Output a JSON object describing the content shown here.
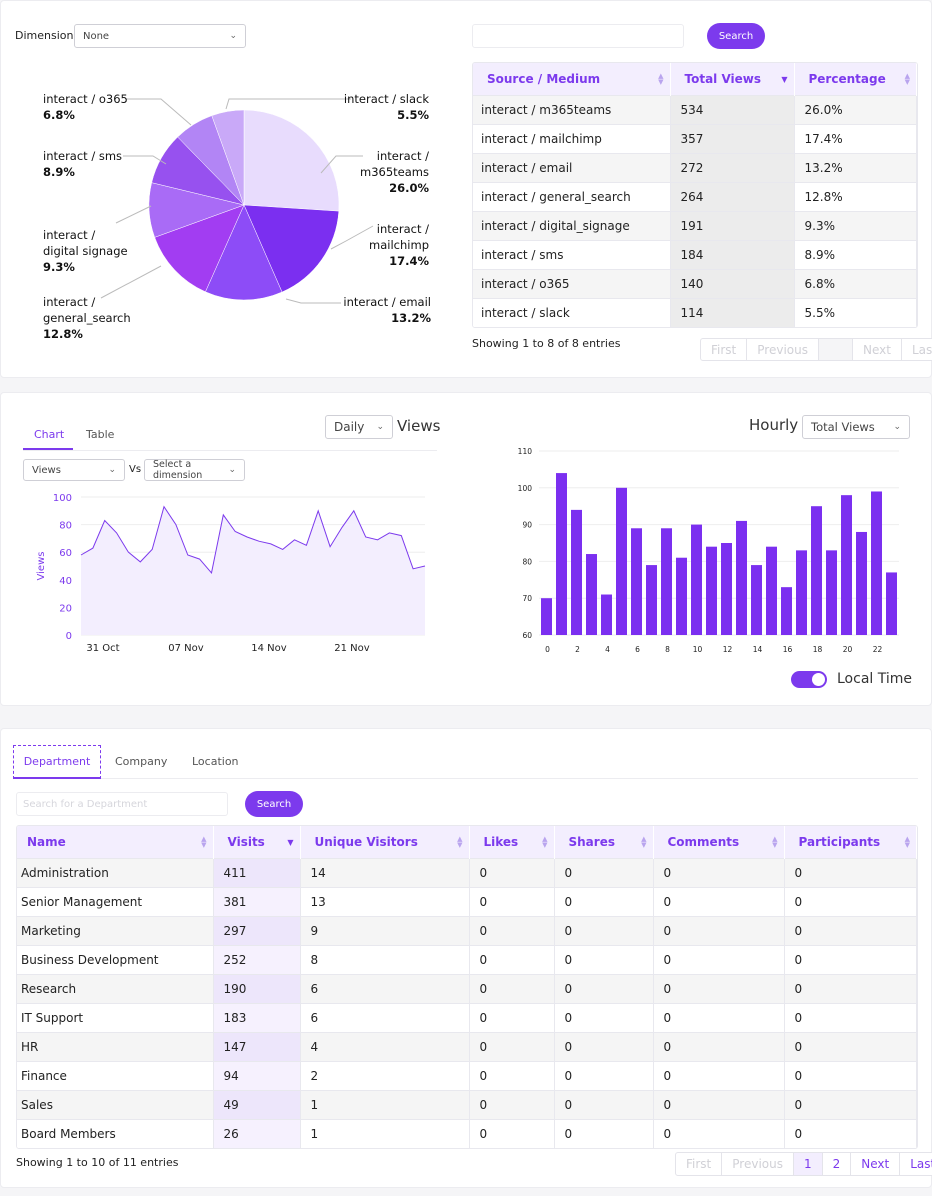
{
  "source_panel": {
    "dimension_label": "Dimension",
    "dimension_value": "None",
    "search_placeholder": "",
    "search_button": "Search",
    "pie_labels": [
      {
        "name": "interact / o365",
        "pct": "6.8%"
      },
      {
        "name": "interact / sms",
        "pct": "8.9%"
      },
      {
        "name": "interact /",
        "name2": "digital signage",
        "pct": "9.3%"
      },
      {
        "name": "interact /",
        "name2": "general_search",
        "pct": "12.8%"
      },
      {
        "name": "interact / slack",
        "pct": "5.5%"
      },
      {
        "name": "interact /",
        "name2": "m365teams",
        "pct": "26.0%"
      },
      {
        "name": "interact /",
        "name2": "mailchimp",
        "pct": "17.4%"
      },
      {
        "name": "interact / email",
        "pct": "13.2%"
      }
    ],
    "table": {
      "headers": [
        "Source / Medium",
        "Total Views",
        "Percentage"
      ],
      "rows": [
        [
          "interact / m365teams",
          "534",
          "26.0%"
        ],
        [
          "interact / mailchimp",
          "357",
          "17.4%"
        ],
        [
          "interact / email",
          "272",
          "13.2%"
        ],
        [
          "interact / general_search",
          "264",
          "12.8%"
        ],
        [
          "interact / digital_signage",
          "191",
          "9.3%"
        ],
        [
          "interact / sms",
          "184",
          "8.9%"
        ],
        [
          "interact / o365",
          "140",
          "6.8%"
        ],
        [
          "interact / slack",
          "114",
          "5.5%"
        ]
      ],
      "info": "Showing 1 to 8 of 8 entries",
      "pager": [
        "First",
        "Previous",
        "",
        "Next",
        "Last"
      ]
    }
  },
  "views_panel": {
    "tabs": [
      "Chart",
      "Table"
    ],
    "period": "Daily",
    "title": "Views",
    "metric_select": "Views",
    "vs_label": "Vs",
    "dimension_select": "Select a dimension",
    "hourly_title": "Hourly",
    "hourly_select": "Total Views",
    "toggle_label": "Local Time"
  },
  "dept_panel": {
    "tabs": [
      "Department",
      "Company",
      "Location"
    ],
    "search_placeholder": "Search for a Department",
    "search_button": "Search",
    "headers": [
      "Name",
      "Visits",
      "Unique Visitors",
      "Likes",
      "Shares",
      "Comments",
      "Participants"
    ],
    "rows": [
      [
        "Administration",
        "411",
        "14",
        "0",
        "0",
        "0",
        "0"
      ],
      [
        "Senior Management",
        "381",
        "13",
        "0",
        "0",
        "0",
        "0"
      ],
      [
        "Marketing",
        "297",
        "9",
        "0",
        "0",
        "0",
        "0"
      ],
      [
        "Business Development",
        "252",
        "8",
        "0",
        "0",
        "0",
        "0"
      ],
      [
        "Research",
        "190",
        "6",
        "0",
        "0",
        "0",
        "0"
      ],
      [
        "IT Support",
        "183",
        "6",
        "0",
        "0",
        "0",
        "0"
      ],
      [
        "HR",
        "147",
        "4",
        "0",
        "0",
        "0",
        "0"
      ],
      [
        "Finance",
        "94",
        "2",
        "0",
        "0",
        "0",
        "0"
      ],
      [
        "Sales",
        "49",
        "1",
        "0",
        "0",
        "0",
        "0"
      ],
      [
        "Board Members",
        "26",
        "1",
        "0",
        "0",
        "0",
        "0"
      ]
    ],
    "info": "Showing 1 to 10 of 11 entries",
    "pager": [
      "First",
      "Previous",
      "1",
      "2",
      "Next",
      "Last"
    ]
  },
  "chart_data": [
    {
      "type": "pie",
      "categories": [
        "interact / m365teams",
        "interact / mailchimp",
        "interact / email",
        "interact / general_search",
        "interact / digital signage",
        "interact / sms",
        "interact / o365",
        "interact / slack"
      ],
      "values": [
        26.0,
        17.4,
        13.2,
        12.8,
        9.3,
        8.9,
        6.8,
        5.5
      ],
      "colors": [
        "#e8dcfd",
        "#7b2ff0",
        "#8d4cf7",
        "#a23df2",
        "#a96bf6",
        "#9751ef",
        "#b285f5",
        "#c9a9f8"
      ]
    },
    {
      "type": "area",
      "ylabel": "Views",
      "ylim": [
        0,
        100
      ],
      "yticks": [
        0,
        20,
        40,
        60,
        80,
        100
      ],
      "xticks": [
        "31 Oct",
        "07 Nov",
        "14 Nov",
        "21 Nov"
      ],
      "values": [
        58,
        63,
        83,
        74,
        60,
        53,
        62,
        93,
        80,
        58,
        55,
        45,
        87,
        75,
        71,
        68,
        66,
        62,
        69,
        65,
        90,
        64,
        78,
        90,
        71,
        69,
        74,
        72,
        48,
        50
      ]
    },
    {
      "type": "bar",
      "ylim": [
        60,
        110
      ],
      "yticks": [
        60,
        70,
        80,
        90,
        100,
        110
      ],
      "xticks": [
        "0",
        "2",
        "4",
        "6",
        "8",
        "10",
        "12",
        "14",
        "16",
        "18",
        "20",
        "22"
      ],
      "categories": [
        0,
        1,
        2,
        3,
        4,
        5,
        6,
        7,
        8,
        9,
        10,
        11,
        12,
        13,
        14,
        15,
        16,
        17,
        18,
        19,
        20,
        21,
        22,
        23
      ],
      "values": [
        70,
        104,
        94,
        82,
        71,
        100,
        89,
        79,
        89,
        81,
        90,
        84,
        85,
        91,
        79,
        84,
        73,
        83,
        95,
        83,
        98,
        88,
        99,
        77
      ],
      "color": "#7b2ff0"
    }
  ]
}
